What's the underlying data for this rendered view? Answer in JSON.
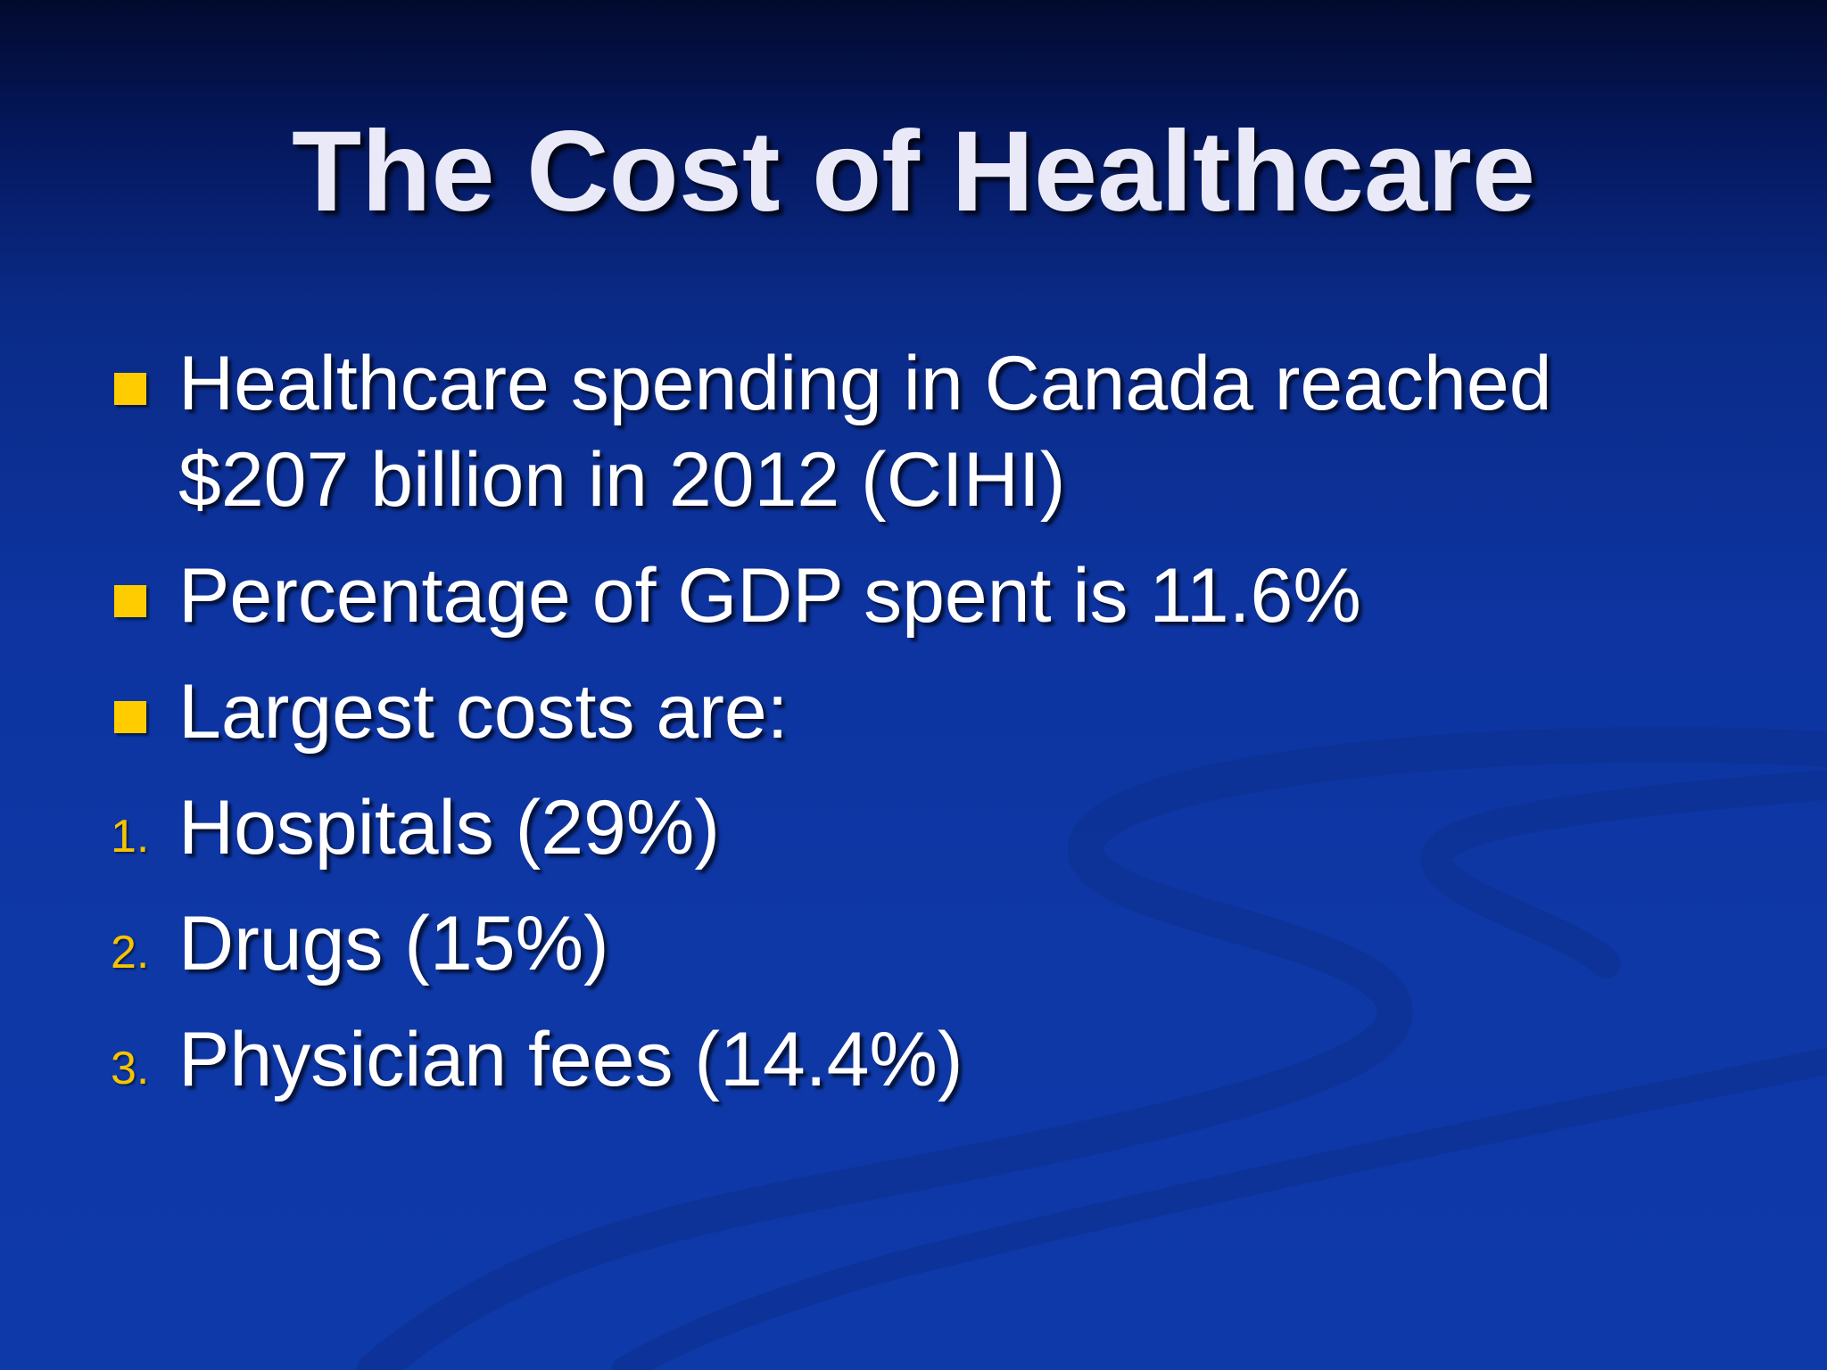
{
  "slide": {
    "title": "The Cost of Healthcare",
    "bullets": [
      {
        "lines": [
          "Healthcare spending in Canada reached",
          "$207 billion in 2012 (CIHI)"
        ]
      },
      {
        "lines": [
          "Percentage of GDP spent is 11.6%"
        ]
      },
      {
        "lines": [
          "Largest costs are:"
        ]
      }
    ],
    "numbered": [
      {
        "marker": "1.",
        "text": "Hospitals (29%)"
      },
      {
        "marker": "2.",
        "text": "Drugs (15%)"
      },
      {
        "marker": "3.",
        "text": "Physician fees (14.4%)"
      }
    ]
  },
  "colors": {
    "background": "#0d34a0",
    "title_text": "#e9e9f8",
    "body_text": "#ffffff",
    "bullet": "#ffcc00",
    "number_marker": "#f5c400"
  }
}
